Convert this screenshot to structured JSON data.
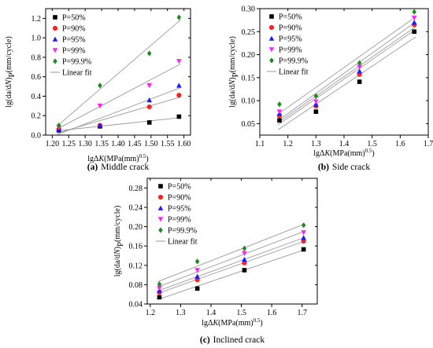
{
  "chart_data": [
    {
      "type": "scatter",
      "caption_letter": "(a)",
      "caption_text": "Middle crack",
      "xlabel_prefix": "lgΔ",
      "xlabel_italic": "K",
      "xlabel_unit": "(MPa(mm)",
      "xlabel_exp": "0.5",
      "xlabel_close": ")",
      "ylabel_lead": "lg(da/d",
      "ylabel_italic": "N",
      "ylabel_close": ")",
      "ylabel_sub": "P",
      "ylabel_unit": "(mm/cycle)",
      "xlim": [
        1.18,
        1.62
      ],
      "ylim": [
        0.0,
        1.3
      ],
      "xticks": [
        "1.20",
        "1.25",
        "1.30",
        "1.35",
        "1.40",
        "1.45",
        "1.50",
        "1.55",
        "1.60"
      ],
      "yticks": [
        "0.0",
        "0.2",
        "0.4",
        "0.6",
        "0.8",
        "1.0",
        "1.2"
      ],
      "legend_position": "top-left",
      "fit_label": "Linear fit",
      "x": [
        1.22,
        1.345,
        1.495,
        1.585
      ],
      "series": [
        {
          "name": "P=50%",
          "values": [
            0.05,
            0.09,
            0.13,
            0.19
          ]
        },
        {
          "name": "P=90%",
          "values": [
            0.06,
            0.1,
            0.29,
            0.41
          ]
        },
        {
          "name": "P=95%",
          "values": [
            0.06,
            0.1,
            0.36,
            0.51
          ]
        },
        {
          "name": "P=99%",
          "values": [
            0.08,
            0.3,
            0.51,
            0.76
          ]
        },
        {
          "name": "P=99.9%",
          "values": [
            0.1,
            0.51,
            0.84,
            1.21
          ]
        }
      ]
    },
    {
      "type": "scatter",
      "caption_letter": "(b)",
      "caption_text": "Side crack",
      "xlabel_prefix": "lgΔ",
      "xlabel_italic": "K",
      "xlabel_unit": "(MPa(mm)",
      "xlabel_exp": "0.5",
      "xlabel_close": ")",
      "ylabel_lead": "lg(da/d",
      "ylabel_italic": "N",
      "ylabel_close": ")",
      "ylabel_sub": "P",
      "ylabel_unit": "(mm/cycle)",
      "xlim": [
        1.1,
        1.7
      ],
      "ylim": [
        0.025,
        0.3
      ],
      "xticks": [
        "1.1",
        "1.2",
        "1.3",
        "1.4",
        "1.5",
        "1.6",
        "1.7"
      ],
      "yticks": [
        "0.05",
        "0.10",
        "0.15",
        "0.20",
        "0.25",
        "0.30"
      ],
      "legend_position": "top-left",
      "fit_label": "Linear fit",
      "x": [
        1.17,
        1.3,
        1.455,
        1.65
      ],
      "series": [
        {
          "name": "P=50%",
          "values": [
            0.057,
            0.076,
            0.141,
            0.25
          ]
        },
        {
          "name": "P=90%",
          "values": [
            0.067,
            0.088,
            0.157,
            0.265
          ]
        },
        {
          "name": "P=95%",
          "values": [
            0.072,
            0.092,
            0.164,
            0.27
          ]
        },
        {
          "name": "P=99%",
          "values": [
            0.076,
            0.098,
            0.173,
            0.28
          ]
        },
        {
          "name": "P=99.9%",
          "values": [
            0.092,
            0.11,
            0.182,
            0.293
          ]
        }
      ]
    },
    {
      "type": "scatter",
      "caption_letter": "(c)",
      "caption_text": "Inclined crack",
      "xlabel_prefix": "lgΔ",
      "xlabel_italic": "K",
      "xlabel_unit": "(MPa(mm)",
      "xlabel_exp": "0.5",
      "xlabel_close": ")",
      "ylabel_lead": "lg(da/d",
      "ylabel_italic": "N",
      "ylabel_close": ")",
      "ylabel_sub": "P",
      "ylabel_unit": "(mm/cycle)",
      "xlim": [
        1.19,
        1.75
      ],
      "ylim": [
        0.04,
        0.3
      ],
      "xticks": [
        "1.2",
        "1.3",
        "1.4",
        "1.5",
        "1.6",
        "1.7"
      ],
      "yticks": [
        "0.04",
        "0.08",
        "0.12",
        "0.16",
        "0.20",
        "0.24",
        "0.28"
      ],
      "legend_position": "top-left",
      "fit_label": "Linear fit",
      "x": [
        1.23,
        1.355,
        1.51,
        1.705
      ],
      "series": [
        {
          "name": "P=50%",
          "values": [
            0.054,
            0.072,
            0.11,
            0.153
          ]
        },
        {
          "name": "P=90%",
          "values": [
            0.064,
            0.09,
            0.125,
            0.17
          ]
        },
        {
          "name": "P=95%",
          "values": [
            0.068,
            0.097,
            0.132,
            0.177
          ]
        },
        {
          "name": "P=99%",
          "values": [
            0.073,
            0.11,
            0.145,
            0.188
          ]
        },
        {
          "name": "P=99.9%",
          "values": [
            0.081,
            0.128,
            0.155,
            0.203
          ]
        }
      ]
    }
  ],
  "series_style": [
    {
      "marker": "square",
      "color": "#000000"
    },
    {
      "marker": "circle",
      "color": "#ff2020"
    },
    {
      "marker": "triangle",
      "color": "#1a1aff"
    },
    {
      "marker": "tridown",
      "color": "#ff20ff"
    },
    {
      "marker": "diamond",
      "color": "#1f8a1f"
    }
  ],
  "fit_color": "#9a9a9a"
}
